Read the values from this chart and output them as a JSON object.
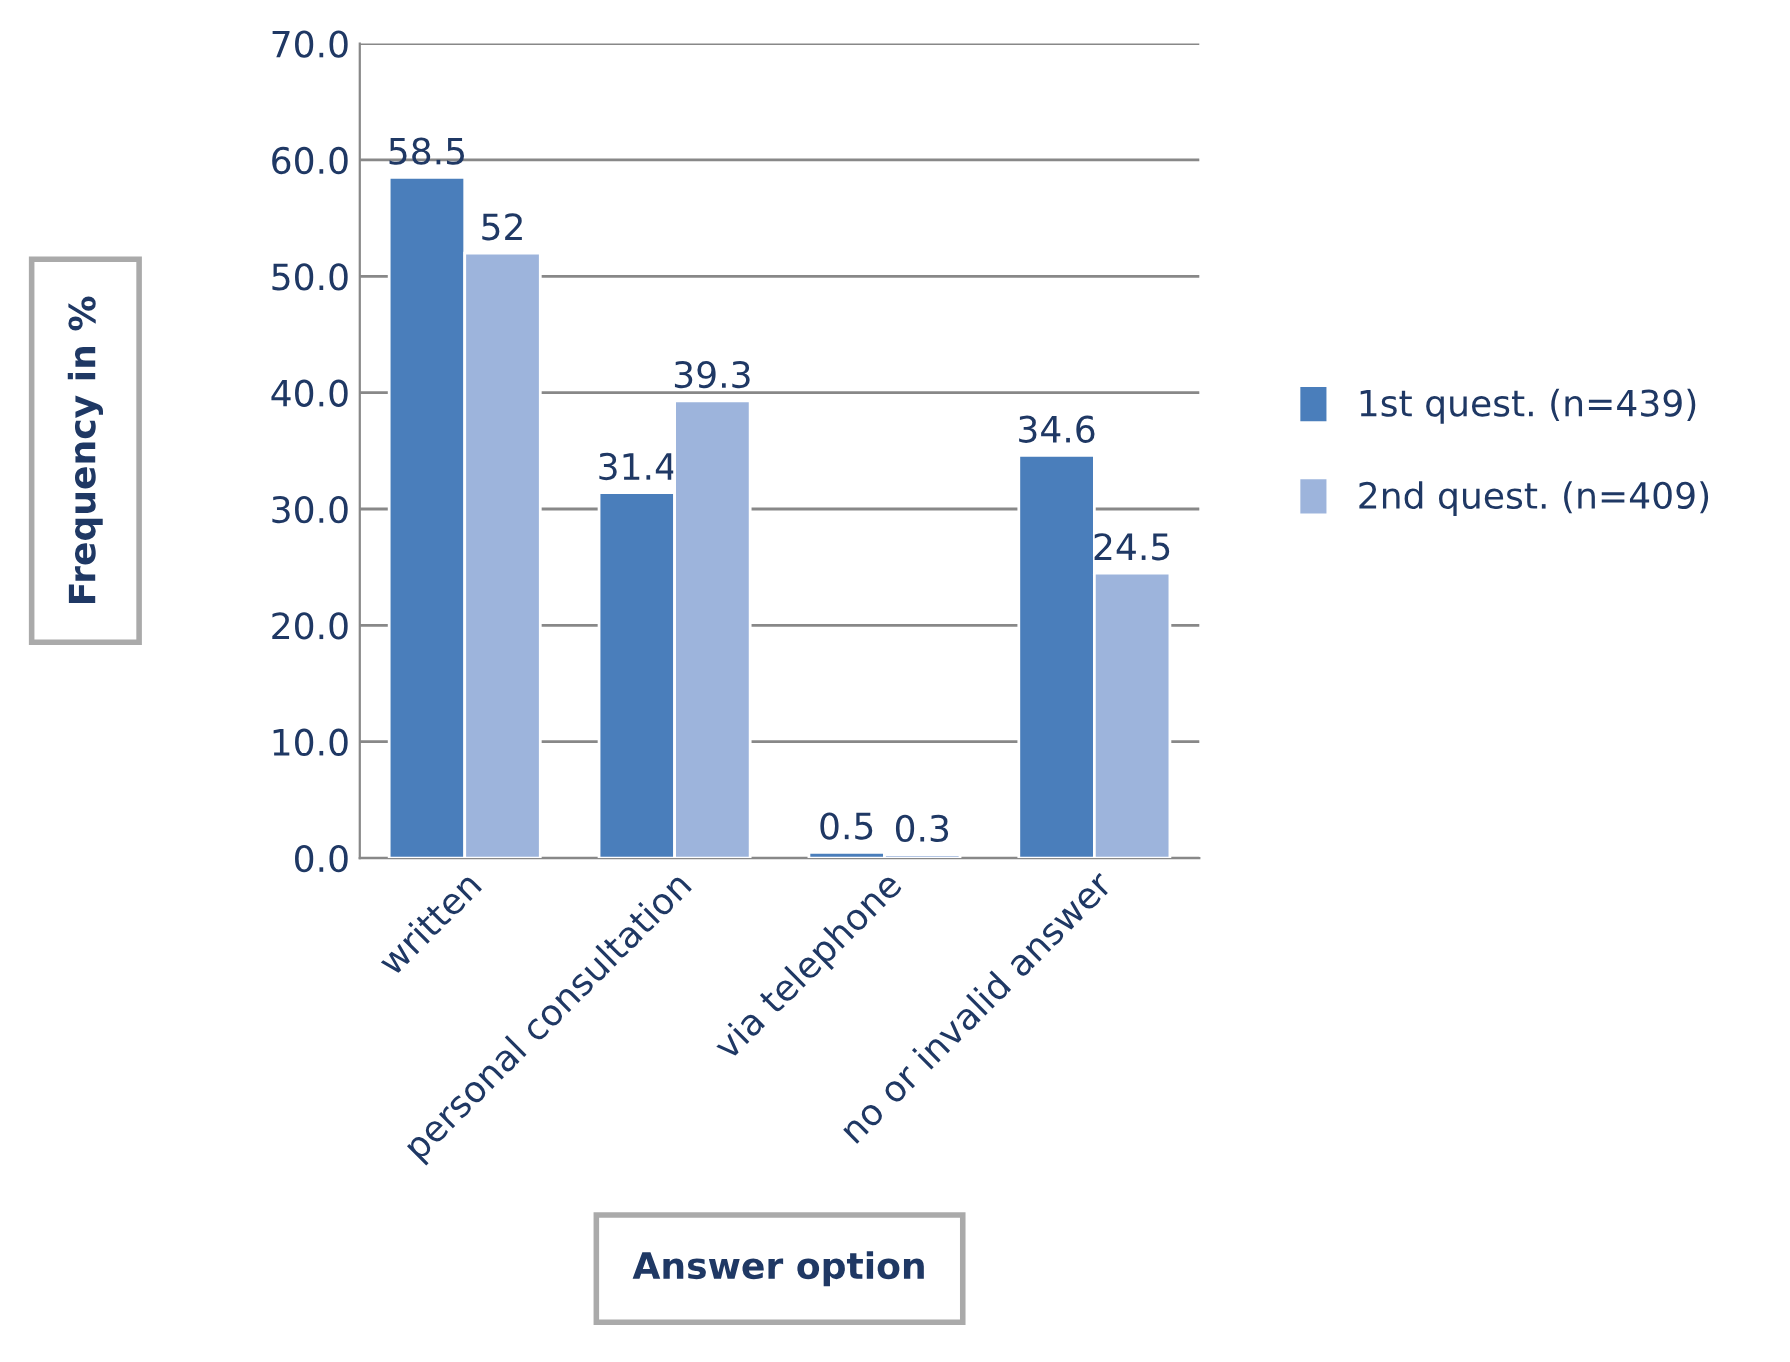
{
  "chart_data": {
    "type": "bar",
    "xlabel": "Answer option",
    "ylabel": "Frequency in %",
    "categories": [
      "written",
      "personal consultation",
      "via telephone",
      "no or invalid answer"
    ],
    "series": [
      {
        "name": "1st quest. (n=439)",
        "color": "#4a7ebb",
        "values": [
          58.5,
          31.4,
          0.5,
          34.6
        ],
        "value_labels": [
          "58.5",
          "31.4",
          "0.5",
          "34.6"
        ]
      },
      {
        "name": "2nd quest. (n=409)",
        "color": "#9db4dc",
        "values": [
          52,
          39.3,
          0.3,
          24.5
        ],
        "value_labels": [
          "52",
          "39.3",
          "0.3",
          "24.5"
        ]
      }
    ],
    "ylim": [
      0,
      70
    ],
    "yticks": [
      {
        "value": 0,
        "label": "0.0"
      },
      {
        "value": 10,
        "label": "10.0"
      },
      {
        "value": 20,
        "label": "20.0"
      },
      {
        "value": 30,
        "label": "30.0"
      },
      {
        "value": 40,
        "label": "40.0"
      },
      {
        "value": 50,
        "label": "50.0"
      },
      {
        "value": 60,
        "label": "60.0"
      },
      {
        "value": 70,
        "label": "70.0"
      }
    ],
    "grid": "y",
    "legend": "right"
  }
}
